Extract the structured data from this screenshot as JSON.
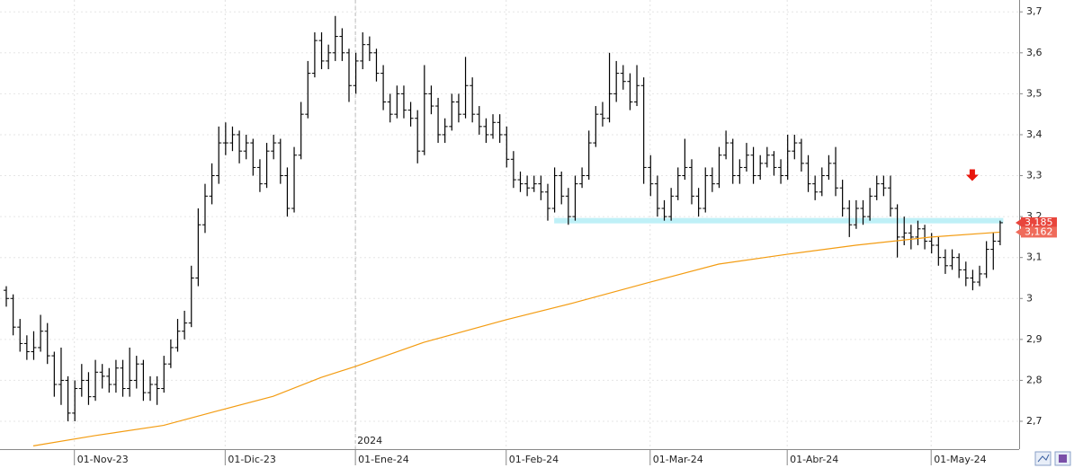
{
  "chart_data": {
    "type": "ohlc",
    "x": [
      "2023-10-18",
      "2023-10-19",
      "2023-10-20",
      "2023-10-23",
      "2023-10-24",
      "2023-10-25",
      "2023-10-26",
      "2023-10-27",
      "2023-10-30",
      "2023-10-31",
      "2023-11-01",
      "2023-11-02",
      "2023-11-03",
      "2023-11-06",
      "2023-11-07",
      "2023-11-08",
      "2023-11-09",
      "2023-11-10",
      "2023-11-13",
      "2023-11-14",
      "2023-11-15",
      "2023-11-16",
      "2023-11-17",
      "2023-11-20",
      "2023-11-21",
      "2023-11-22",
      "2023-11-23",
      "2023-11-24",
      "2023-11-27",
      "2023-11-28",
      "2023-11-29",
      "2023-11-30",
      "2023-12-01",
      "2023-12-04",
      "2023-12-05",
      "2023-12-06",
      "2023-12-07",
      "2023-12-08",
      "2023-12-11",
      "2023-12-12",
      "2023-12-13",
      "2023-12-14",
      "2023-12-15",
      "2023-12-18",
      "2023-12-19",
      "2023-12-20",
      "2023-12-21",
      "2023-12-22",
      "2023-12-27",
      "2023-12-28",
      "2023-12-29",
      "2024-01-02",
      "2024-01-03",
      "2024-01-04",
      "2024-01-05",
      "2024-01-08",
      "2024-01-09",
      "2024-01-10",
      "2024-01-11",
      "2024-01-12",
      "2024-01-15",
      "2024-01-16",
      "2024-01-17",
      "2024-01-18",
      "2024-01-19",
      "2024-01-22",
      "2024-01-23",
      "2024-01-24",
      "2024-01-25",
      "2024-01-26",
      "2024-01-29",
      "2024-01-30",
      "2024-01-31",
      "2024-02-01",
      "2024-02-02",
      "2024-02-05",
      "2024-02-06",
      "2024-02-07",
      "2024-02-08",
      "2024-02-09",
      "2024-02-12",
      "2024-02-13",
      "2024-02-14",
      "2024-02-15",
      "2024-02-16",
      "2024-02-19",
      "2024-02-20",
      "2024-02-21",
      "2024-02-22",
      "2024-02-23",
      "2024-02-26",
      "2024-02-27",
      "2024-02-28",
      "2024-02-29",
      "2024-03-01",
      "2024-03-04",
      "2024-03-05",
      "2024-03-06",
      "2024-03-07",
      "2024-03-08",
      "2024-03-11",
      "2024-03-12",
      "2024-03-13",
      "2024-03-14",
      "2024-03-15",
      "2024-03-18",
      "2024-03-19",
      "2024-03-20",
      "2024-03-21",
      "2024-03-22",
      "2024-03-25",
      "2024-03-26",
      "2024-03-27",
      "2024-03-28",
      "2024-04-02",
      "2024-04-03",
      "2024-04-04",
      "2024-04-05",
      "2024-04-08",
      "2024-04-09",
      "2024-04-10",
      "2024-04-11",
      "2024-04-12",
      "2024-04-15",
      "2024-04-16",
      "2024-04-17",
      "2024-04-18",
      "2024-04-19",
      "2024-04-22",
      "2024-04-23",
      "2024-04-24",
      "2024-04-25",
      "2024-04-26",
      "2024-04-29",
      "2024-04-30",
      "2024-05-02",
      "2024-05-03",
      "2024-05-06",
      "2024-05-07",
      "2024-05-08",
      "2024-05-09",
      "2024-05-10",
      "2024-05-13",
      "2024-05-14",
      "2024-05-15",
      "2024-05-16"
    ],
    "ohlc": [
      [
        3.02,
        3.03,
        2.98,
        3.0
      ],
      [
        3.0,
        3.01,
        2.91,
        2.93
      ],
      [
        2.93,
        2.95,
        2.87,
        2.89
      ],
      [
        2.89,
        2.91,
        2.85,
        2.87
      ],
      [
        2.87,
        2.92,
        2.85,
        2.88
      ],
      [
        2.88,
        2.96,
        2.87,
        2.92
      ],
      [
        2.92,
        2.94,
        2.84,
        2.86
      ],
      [
        2.86,
        2.87,
        2.76,
        2.79
      ],
      [
        2.79,
        2.88,
        2.74,
        2.8
      ],
      [
        2.8,
        2.81,
        2.7,
        2.72
      ],
      [
        2.72,
        2.8,
        2.7,
        2.78
      ],
      [
        2.78,
        2.84,
        2.76,
        2.8
      ],
      [
        2.8,
        2.82,
        2.74,
        2.76
      ],
      [
        2.76,
        2.85,
        2.75,
        2.82
      ],
      [
        2.82,
        2.84,
        2.78,
        2.81
      ],
      [
        2.81,
        2.83,
        2.77,
        2.79
      ],
      [
        2.79,
        2.85,
        2.77,
        2.83
      ],
      [
        2.83,
        2.85,
        2.76,
        2.78
      ],
      [
        2.78,
        2.88,
        2.76,
        2.8
      ],
      [
        2.8,
        2.86,
        2.78,
        2.84
      ],
      [
        2.84,
        2.85,
        2.75,
        2.77
      ],
      [
        2.77,
        2.81,
        2.75,
        2.79
      ],
      [
        2.79,
        2.81,
        2.74,
        2.78
      ],
      [
        2.78,
        2.86,
        2.77,
        2.84
      ],
      [
        2.84,
        2.9,
        2.83,
        2.88
      ],
      [
        2.88,
        2.95,
        2.87,
        2.92
      ],
      [
        2.92,
        2.97,
        2.9,
        2.94
      ],
      [
        2.94,
        3.08,
        2.93,
        3.05
      ],
      [
        3.05,
        3.22,
        3.03,
        3.18
      ],
      [
        3.18,
        3.28,
        3.16,
        3.25
      ],
      [
        3.25,
        3.33,
        3.23,
        3.3
      ],
      [
        3.3,
        3.42,
        3.28,
        3.38
      ],
      [
        3.38,
        3.43,
        3.35,
        3.38
      ],
      [
        3.38,
        3.42,
        3.36,
        3.4
      ],
      [
        3.4,
        3.41,
        3.33,
        3.36
      ],
      [
        3.36,
        3.4,
        3.34,
        3.38
      ],
      [
        3.38,
        3.39,
        3.3,
        3.32
      ],
      [
        3.32,
        3.34,
        3.26,
        3.28
      ],
      [
        3.28,
        3.38,
        3.27,
        3.36
      ],
      [
        3.36,
        3.4,
        3.34,
        3.38
      ],
      [
        3.38,
        3.39,
        3.28,
        3.3
      ],
      [
        3.3,
        3.32,
        3.2,
        3.22
      ],
      [
        3.22,
        3.37,
        3.21,
        3.35
      ],
      [
        3.35,
        3.48,
        3.34,
        3.45
      ],
      [
        3.45,
        3.58,
        3.44,
        3.55
      ],
      [
        3.55,
        3.65,
        3.54,
        3.63
      ],
      [
        3.63,
        3.65,
        3.56,
        3.58
      ],
      [
        3.58,
        3.62,
        3.56,
        3.6
      ],
      [
        3.6,
        3.69,
        3.58,
        3.64
      ],
      [
        3.64,
        3.66,
        3.58,
        3.6
      ],
      [
        3.6,
        3.61,
        3.48,
        3.52
      ],
      [
        3.52,
        3.6,
        3.5,
        3.58
      ],
      [
        3.58,
        3.65,
        3.56,
        3.62
      ],
      [
        3.62,
        3.64,
        3.58,
        3.6
      ],
      [
        3.6,
        3.61,
        3.53,
        3.55
      ],
      [
        3.55,
        3.57,
        3.46,
        3.48
      ],
      [
        3.48,
        3.5,
        3.43,
        3.45
      ],
      [
        3.45,
        3.52,
        3.44,
        3.5
      ],
      [
        3.5,
        3.52,
        3.44,
        3.46
      ],
      [
        3.46,
        3.48,
        3.42,
        3.44
      ],
      [
        3.44,
        3.46,
        3.33,
        3.36
      ],
      [
        3.36,
        3.57,
        3.35,
        3.5
      ],
      [
        3.5,
        3.52,
        3.45,
        3.47
      ],
      [
        3.47,
        3.49,
        3.38,
        3.4
      ],
      [
        3.4,
        3.44,
        3.38,
        3.42
      ],
      [
        3.42,
        3.5,
        3.41,
        3.48
      ],
      [
        3.48,
        3.5,
        3.43,
        3.45
      ],
      [
        3.45,
        3.59,
        3.44,
        3.52
      ],
      [
        3.52,
        3.54,
        3.43,
        3.45
      ],
      [
        3.45,
        3.47,
        3.4,
        3.42
      ],
      [
        3.42,
        3.44,
        3.38,
        3.4
      ],
      [
        3.4,
        3.45,
        3.39,
        3.43
      ],
      [
        3.43,
        3.45,
        3.38,
        3.4
      ],
      [
        3.4,
        3.42,
        3.32,
        3.34
      ],
      [
        3.34,
        3.36,
        3.27,
        3.29
      ],
      [
        3.29,
        3.31,
        3.26,
        3.28
      ],
      [
        3.28,
        3.3,
        3.25,
        3.27
      ],
      [
        3.27,
        3.3,
        3.26,
        3.28
      ],
      [
        3.28,
        3.3,
        3.24,
        3.26
      ],
      [
        3.26,
        3.28,
        3.19,
        3.22
      ],
      [
        3.22,
        3.32,
        3.21,
        3.3
      ],
      [
        3.3,
        3.31,
        3.23,
        3.25
      ],
      [
        3.25,
        3.27,
        3.18,
        3.2
      ],
      [
        3.2,
        3.3,
        3.19,
        3.28
      ],
      [
        3.28,
        3.32,
        3.27,
        3.3
      ],
      [
        3.3,
        3.41,
        3.29,
        3.38
      ],
      [
        3.38,
        3.47,
        3.37,
        3.45
      ],
      [
        3.45,
        3.48,
        3.42,
        3.44
      ],
      [
        3.44,
        3.6,
        3.43,
        3.5
      ],
      [
        3.5,
        3.58,
        3.48,
        3.55
      ],
      [
        3.55,
        3.57,
        3.51,
        3.53
      ],
      [
        3.53,
        3.55,
        3.46,
        3.48
      ],
      [
        3.48,
        3.57,
        3.47,
        3.52
      ],
      [
        3.52,
        3.54,
        3.28,
        3.32
      ],
      [
        3.32,
        3.35,
        3.25,
        3.28
      ],
      [
        3.28,
        3.3,
        3.2,
        3.22
      ],
      [
        3.22,
        3.24,
        3.19,
        3.2
      ],
      [
        3.2,
        3.27,
        3.19,
        3.25
      ],
      [
        3.25,
        3.32,
        3.24,
        3.3
      ],
      [
        3.3,
        3.39,
        3.29,
        3.32
      ],
      [
        3.32,
        3.34,
        3.23,
        3.25
      ],
      [
        3.25,
        3.27,
        3.2,
        3.22
      ],
      [
        3.22,
        3.32,
        3.21,
        3.3
      ],
      [
        3.3,
        3.32,
        3.26,
        3.28
      ],
      [
        3.28,
        3.37,
        3.27,
        3.35
      ],
      [
        3.35,
        3.41,
        3.34,
        3.38
      ],
      [
        3.38,
        3.39,
        3.28,
        3.3
      ],
      [
        3.3,
        3.34,
        3.28,
        3.32
      ],
      [
        3.32,
        3.38,
        3.31,
        3.35
      ],
      [
        3.35,
        3.37,
        3.28,
        3.3
      ],
      [
        3.3,
        3.35,
        3.29,
        3.33
      ],
      [
        3.33,
        3.37,
        3.32,
        3.35
      ],
      [
        3.35,
        3.36,
        3.3,
        3.32
      ],
      [
        3.32,
        3.34,
        3.28,
        3.3
      ],
      [
        3.3,
        3.4,
        3.29,
        3.36
      ],
      [
        3.36,
        3.4,
        3.34,
        3.38
      ],
      [
        3.38,
        3.39,
        3.31,
        3.33
      ],
      [
        3.33,
        3.35,
        3.26,
        3.28
      ],
      [
        3.28,
        3.3,
        3.24,
        3.26
      ],
      [
        3.26,
        3.32,
        3.25,
        3.3
      ],
      [
        3.3,
        3.35,
        3.29,
        3.33
      ],
      [
        3.33,
        3.37,
        3.25,
        3.27
      ],
      [
        3.27,
        3.29,
        3.2,
        3.22
      ],
      [
        3.22,
        3.24,
        3.15,
        3.18
      ],
      [
        3.18,
        3.24,
        3.17,
        3.22
      ],
      [
        3.22,
        3.24,
        3.18,
        3.2
      ],
      [
        3.2,
        3.27,
        3.19,
        3.25
      ],
      [
        3.25,
        3.3,
        3.24,
        3.28
      ],
      [
        3.28,
        3.3,
        3.25,
        3.27
      ],
      [
        3.27,
        3.3,
        3.2,
        3.22
      ],
      [
        3.22,
        3.23,
        3.1,
        3.15
      ],
      [
        3.15,
        3.2,
        3.13,
        3.16
      ],
      [
        3.16,
        3.18,
        3.12,
        3.15
      ],
      [
        3.15,
        3.19,
        3.13,
        3.17
      ],
      [
        3.17,
        3.18,
        3.12,
        3.14
      ],
      [
        3.14,
        3.16,
        3.11,
        3.13
      ],
      [
        3.13,
        3.15,
        3.08,
        3.1
      ],
      [
        3.1,
        3.12,
        3.06,
        3.08
      ],
      [
        3.08,
        3.12,
        3.07,
        3.1
      ],
      [
        3.1,
        3.11,
        3.05,
        3.07
      ],
      [
        3.07,
        3.09,
        3.03,
        3.05
      ],
      [
        3.05,
        3.07,
        3.02,
        3.04
      ],
      [
        3.04,
        3.08,
        3.03,
        3.06
      ],
      [
        3.06,
        3.14,
        3.05,
        3.12
      ],
      [
        3.12,
        3.16,
        3.07,
        3.14
      ],
      [
        3.14,
        3.19,
        3.13,
        3.185
      ]
    ],
    "color": "#000000",
    "ma": {
      "color": "#f39c12",
      "x": [
        "2023-10-24",
        "2023-11-06",
        "2023-11-20",
        "2023-11-30",
        "2023-12-12",
        "2023-12-21",
        "2024-01-02",
        "2024-01-16",
        "2024-02-01",
        "2024-02-15",
        "2024-03-01",
        "2024-03-15",
        "2024-04-02",
        "2024-04-16",
        "2024-05-02",
        "2024-05-16"
      ],
      "values": [
        2.64,
        2.665,
        2.69,
        2.726,
        2.761,
        2.807,
        2.834,
        2.893,
        2.948,
        2.99,
        3.04,
        3.084,
        3.108,
        3.13,
        3.15,
        3.162
      ]
    },
    "level": {
      "value": 3.19,
      "from": "2024-02-12",
      "color": "#bff0f7"
    },
    "signal": {
      "x": "2024-05-10",
      "value": 3.3,
      "color": "#e8160c"
    },
    "last_labels": [
      {
        "value": 3.185,
        "label": "3,185",
        "color": "#e8453c"
      },
      {
        "value": 3.162,
        "label": "3,162",
        "color": "#ef6b5b"
      }
    ],
    "year_label": {
      "x": "2024-01-02",
      "label": "2024"
    },
    "ylim": [
      2.632,
      3.729
    ],
    "yticks": [
      {
        "value": 2.7,
        "label": "2,7"
      },
      {
        "value": 2.8,
        "label": "2,8"
      },
      {
        "value": 2.9,
        "label": "2,9"
      },
      {
        "value": 3,
        "label": "3"
      },
      {
        "value": 3.1,
        "label": "3,1"
      },
      {
        "value": 3.2,
        "label": "3,2"
      },
      {
        "value": 3.3,
        "label": "3,3"
      },
      {
        "value": 3.4,
        "label": "3,4"
      },
      {
        "value": 3.5,
        "label": "3,5"
      },
      {
        "value": 3.6,
        "label": "3,6"
      },
      {
        "value": 3.7,
        "label": "3,7"
      }
    ],
    "xticks": [
      {
        "value": "2023-11-01",
        "label": "01-Nov-23"
      },
      {
        "value": "2023-12-01",
        "label": "01-Dic-23"
      },
      {
        "value": "2024-01-01",
        "label": "01-Ene-24"
      },
      {
        "value": "2024-02-01",
        "label": "01-Feb-24"
      },
      {
        "value": "2024-03-01",
        "label": "01-Mar-24"
      },
      {
        "value": "2024-04-01",
        "label": "01-Abr-24"
      },
      {
        "value": "2024-05-01",
        "label": "01-May-24"
      }
    ],
    "grid": true
  }
}
